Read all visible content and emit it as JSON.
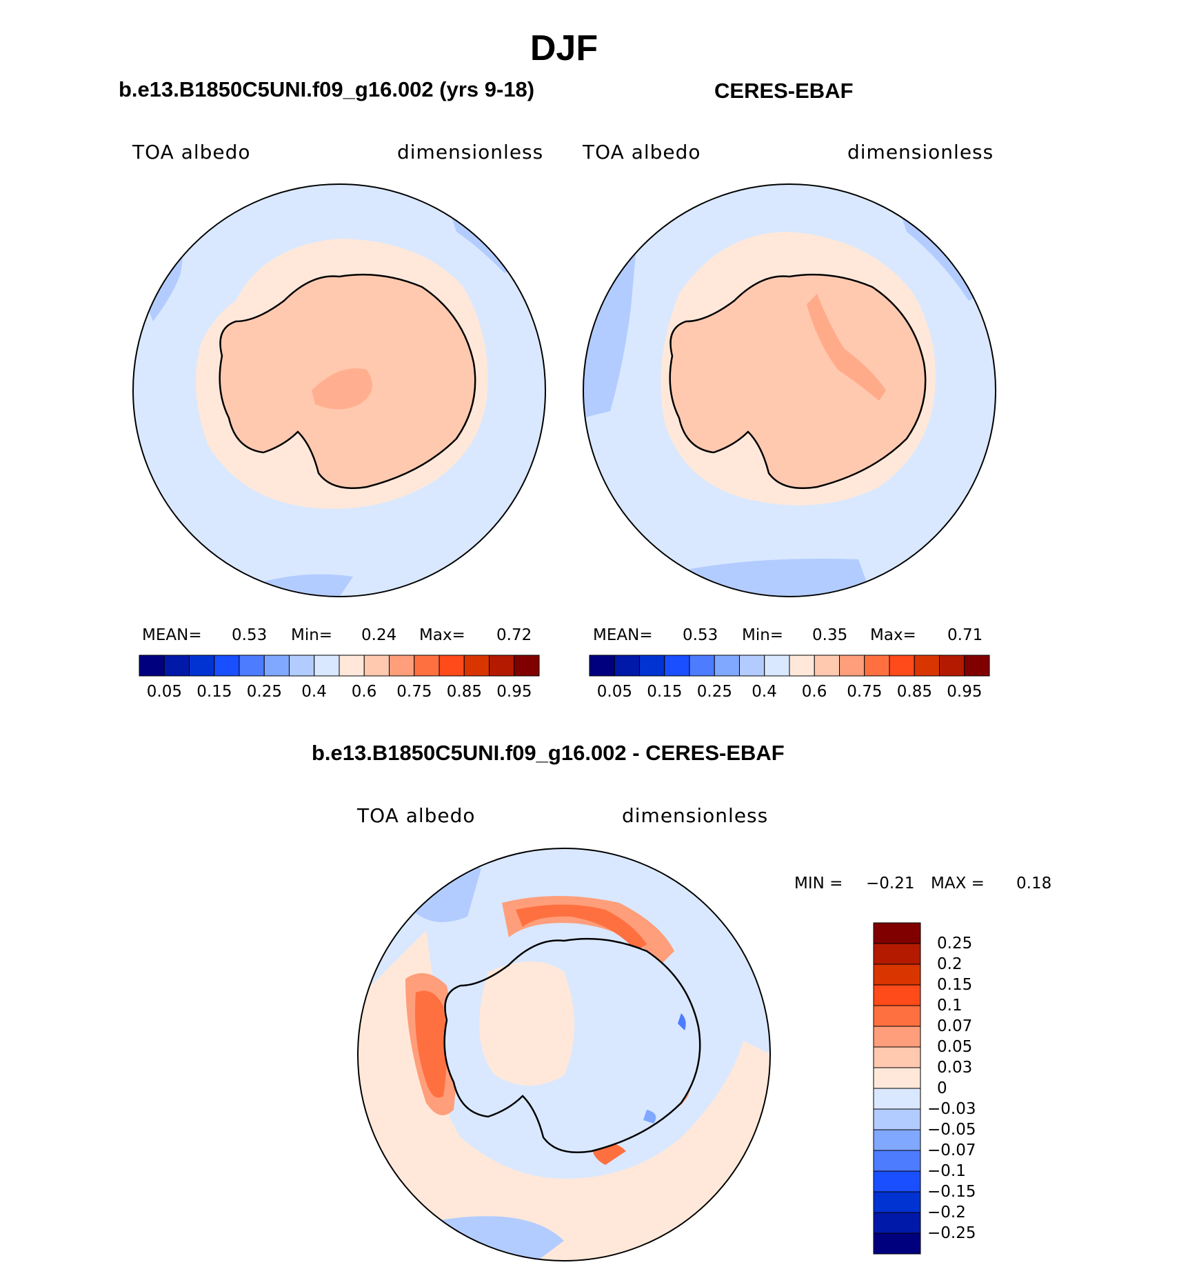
{
  "page_title": "DJF",
  "panels": [
    {
      "id": "model",
      "title": "b.e13.B1850C5UNI.f09_g16.002 (yrs 9-18)",
      "left_label": "TOA albedo",
      "right_label": "dimensionless",
      "stats": {
        "mean_label": "MEAN=",
        "mean": "0.53",
        "min_label": "Min=",
        "min": "0.24",
        "max_label": "Max=",
        "max": "0.72"
      }
    },
    {
      "id": "obs",
      "title": "CERES-EBAF",
      "left_label": "TOA albedo",
      "right_label": "dimensionless",
      "stats": {
        "mean_label": "MEAN=",
        "mean": "0.53",
        "min_label": "Min=",
        "min": "0.35",
        "max_label": "Max=",
        "max": "0.71"
      }
    },
    {
      "id": "diff",
      "title": "b.e13.B1850C5UNI.f09_g16.002 - CERES-EBAF",
      "left_label": "TOA albedo",
      "right_label": "dimensionless",
      "stats": {
        "min_label": "MIN =",
        "min": "−0.21",
        "max_label": "MAX =",
        "max": "0.18"
      }
    }
  ],
  "colorbar_top": {
    "colors": [
      "#00007f",
      "#0019a8",
      "#0033d1",
      "#1a4fff",
      "#4d7cff",
      "#80a8ff",
      "#b3ccff",
      "#d9e8ff",
      "#ffe8d9",
      "#ffc9b0",
      "#ff9e7a",
      "#ff7040",
      "#ff4a1a",
      "#d93500",
      "#b31a00",
      "#800000"
    ],
    "tick_labels": [
      "0.05",
      "0.15",
      "0.25",
      "0.4",
      "0.6",
      "0.75",
      "0.85",
      "0.95"
    ]
  },
  "colorbar_diff": {
    "colors_top_to_bottom": [
      "#800000",
      "#b31a00",
      "#d93500",
      "#ff4a1a",
      "#ff7040",
      "#ff9e7a",
      "#ffc9b0",
      "#ffe8d9",
      "#d9e8ff",
      "#b3ccff",
      "#80a8ff",
      "#4d7cff",
      "#1a4fff",
      "#0033d1",
      "#0019a8",
      "#00007f"
    ],
    "tick_labels": [
      "0.25",
      "0.2",
      "0.15",
      "0.1",
      "0.07",
      "0.05",
      "0.03",
      "0",
      "−0.03",
      "−0.05",
      "−0.07",
      "−0.1",
      "−0.15",
      "−0.2",
      "−0.25"
    ]
  },
  "map_colors": {
    "ocean": "#d9e8ff",
    "ocean_low": "#b3ccff",
    "sea_ice": "#ffe8d9",
    "continent": "#ffc9b0",
    "continent_high": "#ff9e7a",
    "diff_pos1": "#ffe8d9",
    "diff_pos2": "#ffc9b0",
    "diff_pos3": "#ff9e7a",
    "diff_pos4": "#ff7040",
    "diff_pos5": "#ff4a1a",
    "diff_neg1": "#d9e8ff",
    "diff_neg2": "#b3ccff",
    "diff_neg3": "#80a8ff",
    "diff_neg4": "#4d7cff",
    "diff_neg5": "#1a4fff"
  }
}
